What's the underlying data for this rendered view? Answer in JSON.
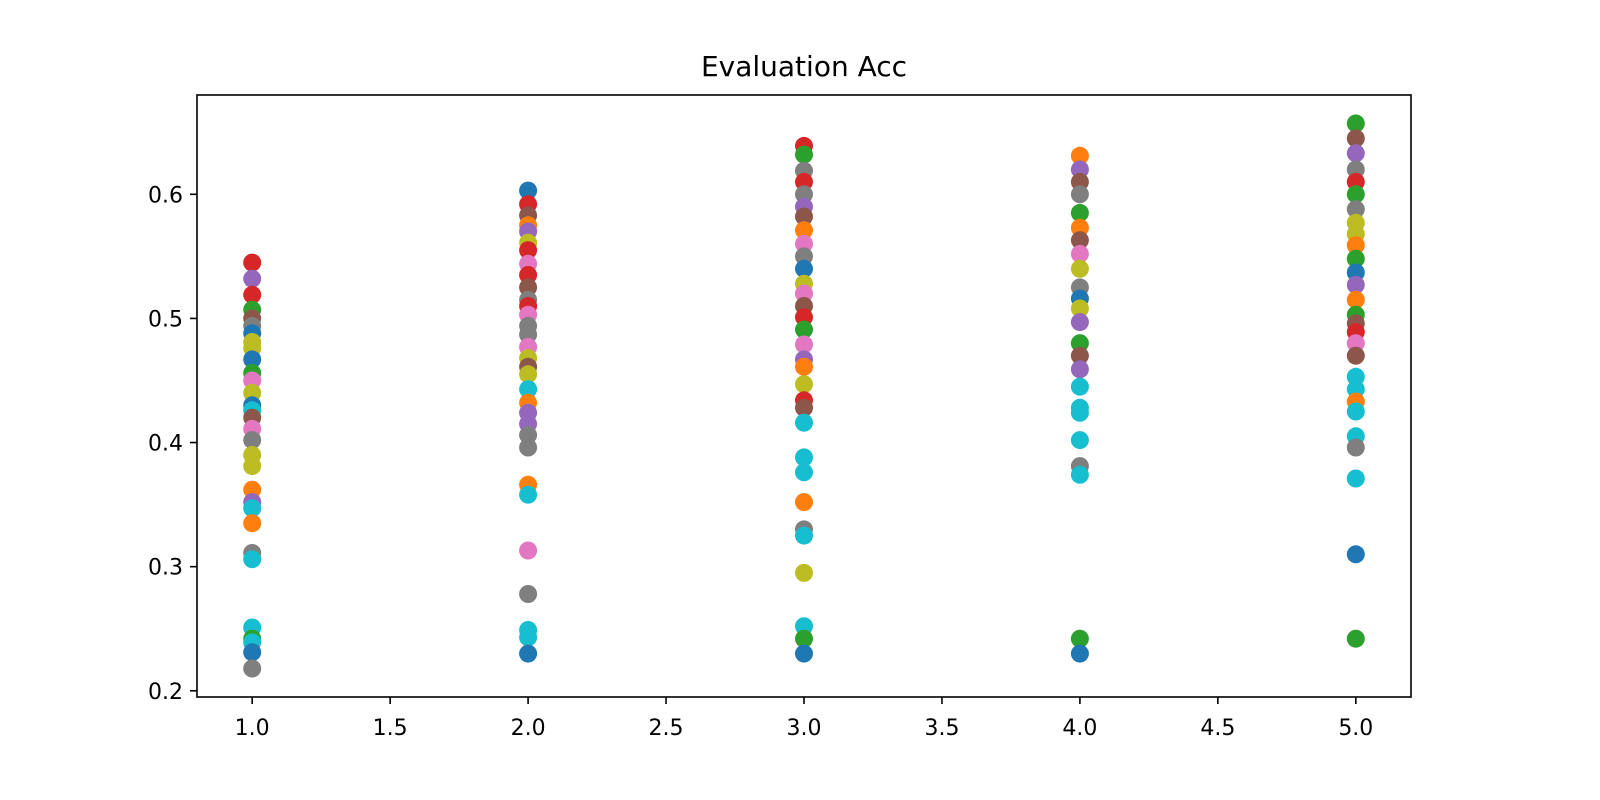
{
  "chart_data": {
    "type": "scatter",
    "title": "Evaluation Acc",
    "xlabel": "",
    "ylabel": "",
    "xlim": [
      0.8,
      5.2
    ],
    "ylim": [
      0.195,
      0.68
    ],
    "x_ticks": [
      "1.0",
      "1.5",
      "2.0",
      "2.5",
      "3.0",
      "3.5",
      "4.0",
      "4.5",
      "5.0"
    ],
    "y_ticks": [
      "0.2",
      "0.3",
      "0.4",
      "0.5",
      "0.6"
    ],
    "grid": false,
    "legend": "none",
    "palette": [
      "#1f77b4",
      "#ff7f0e",
      "#2ca02c",
      "#d62728",
      "#9467bd",
      "#8c564b",
      "#e377c2",
      "#7f7f7f",
      "#bcbd22",
      "#17becf"
    ],
    "points": [
      {
        "x": 1,
        "y": 0.545,
        "c": "#d62728"
      },
      {
        "x": 1,
        "y": 0.532,
        "c": "#9467bd"
      },
      {
        "x": 1,
        "y": 0.519,
        "c": "#d62728"
      },
      {
        "x": 1,
        "y": 0.507,
        "c": "#2ca02c"
      },
      {
        "x": 1,
        "y": 0.5,
        "c": "#8c564b"
      },
      {
        "x": 1,
        "y": 0.494,
        "c": "#7f7f7f"
      },
      {
        "x": 1,
        "y": 0.488,
        "c": "#1f77b4"
      },
      {
        "x": 1,
        "y": 0.481,
        "c": "#bcbd22"
      },
      {
        "x": 1,
        "y": 0.476,
        "c": "#bcbd22"
      },
      {
        "x": 1,
        "y": 0.467,
        "c": "#1f77b4"
      },
      {
        "x": 1,
        "y": 0.456,
        "c": "#2ca02c"
      },
      {
        "x": 1,
        "y": 0.45,
        "c": "#e377c2"
      },
      {
        "x": 1,
        "y": 0.44,
        "c": "#bcbd22"
      },
      {
        "x": 1,
        "y": 0.43,
        "c": "#1f77b4"
      },
      {
        "x": 1,
        "y": 0.426,
        "c": "#17becf"
      },
      {
        "x": 1,
        "y": 0.42,
        "c": "#8c564b"
      },
      {
        "x": 1,
        "y": 0.411,
        "c": "#e377c2"
      },
      {
        "x": 1,
        "y": 0.402,
        "c": "#7f7f7f"
      },
      {
        "x": 1,
        "y": 0.39,
        "c": "#bcbd22"
      },
      {
        "x": 1,
        "y": 0.381,
        "c": "#bcbd22"
      },
      {
        "x": 1,
        "y": 0.362,
        "c": "#ff7f0e"
      },
      {
        "x": 1,
        "y": 0.352,
        "c": "#9467bd"
      },
      {
        "x": 1,
        "y": 0.347,
        "c": "#17becf"
      },
      {
        "x": 1,
        "y": 0.335,
        "c": "#ff7f0e"
      },
      {
        "x": 1,
        "y": 0.311,
        "c": "#7f7f7f"
      },
      {
        "x": 1,
        "y": 0.306,
        "c": "#17becf"
      },
      {
        "x": 1,
        "y": 0.251,
        "c": "#17becf"
      },
      {
        "x": 1,
        "y": 0.242,
        "c": "#2ca02c"
      },
      {
        "x": 1,
        "y": 0.239,
        "c": "#17becf"
      },
      {
        "x": 1,
        "y": 0.231,
        "c": "#1f77b4"
      },
      {
        "x": 1,
        "y": 0.218,
        "c": "#7f7f7f"
      },
      {
        "x": 2,
        "y": 0.603,
        "c": "#1f77b4"
      },
      {
        "x": 2,
        "y": 0.592,
        "c": "#d62728"
      },
      {
        "x": 2,
        "y": 0.583,
        "c": "#8c564b"
      },
      {
        "x": 2,
        "y": 0.575,
        "c": "#ff7f0e"
      },
      {
        "x": 2,
        "y": 0.57,
        "c": "#9467bd"
      },
      {
        "x": 2,
        "y": 0.561,
        "c": "#bcbd22"
      },
      {
        "x": 2,
        "y": 0.555,
        "c": "#d62728"
      },
      {
        "x": 2,
        "y": 0.544,
        "c": "#e377c2"
      },
      {
        "x": 2,
        "y": 0.535,
        "c": "#d62728"
      },
      {
        "x": 2,
        "y": 0.525,
        "c": "#8c564b"
      },
      {
        "x": 2,
        "y": 0.515,
        "c": "#7f7f7f"
      },
      {
        "x": 2,
        "y": 0.51,
        "c": "#d62728"
      },
      {
        "x": 2,
        "y": 0.503,
        "c": "#e377c2"
      },
      {
        "x": 2,
        "y": 0.494,
        "c": "#7f7f7f"
      },
      {
        "x": 2,
        "y": 0.487,
        "c": "#7f7f7f"
      },
      {
        "x": 2,
        "y": 0.477,
        "c": "#e377c2"
      },
      {
        "x": 2,
        "y": 0.468,
        "c": "#bcbd22"
      },
      {
        "x": 2,
        "y": 0.461,
        "c": "#8c564b"
      },
      {
        "x": 2,
        "y": 0.455,
        "c": "#bcbd22"
      },
      {
        "x": 2,
        "y": 0.443,
        "c": "#17becf"
      },
      {
        "x": 2,
        "y": 0.432,
        "c": "#ff7f0e"
      },
      {
        "x": 2,
        "y": 0.424,
        "c": "#9467bd"
      },
      {
        "x": 2,
        "y": 0.415,
        "c": "#9467bd"
      },
      {
        "x": 2,
        "y": 0.406,
        "c": "#7f7f7f"
      },
      {
        "x": 2,
        "y": 0.396,
        "c": "#7f7f7f"
      },
      {
        "x": 2,
        "y": 0.366,
        "c": "#ff7f0e"
      },
      {
        "x": 2,
        "y": 0.358,
        "c": "#17becf"
      },
      {
        "x": 2,
        "y": 0.313,
        "c": "#e377c2"
      },
      {
        "x": 2,
        "y": 0.278,
        "c": "#7f7f7f"
      },
      {
        "x": 2,
        "y": 0.249,
        "c": "#17becf"
      },
      {
        "x": 2,
        "y": 0.243,
        "c": "#17becf"
      },
      {
        "x": 2,
        "y": 0.23,
        "c": "#1f77b4"
      },
      {
        "x": 3,
        "y": 0.639,
        "c": "#d62728"
      },
      {
        "x": 3,
        "y": 0.632,
        "c": "#2ca02c"
      },
      {
        "x": 3,
        "y": 0.619,
        "c": "#7f7f7f"
      },
      {
        "x": 3,
        "y": 0.61,
        "c": "#d62728"
      },
      {
        "x": 3,
        "y": 0.6,
        "c": "#7f7f7f"
      },
      {
        "x": 3,
        "y": 0.59,
        "c": "#9467bd"
      },
      {
        "x": 3,
        "y": 0.582,
        "c": "#8c564b"
      },
      {
        "x": 3,
        "y": 0.571,
        "c": "#ff7f0e"
      },
      {
        "x": 3,
        "y": 0.56,
        "c": "#e377c2"
      },
      {
        "x": 3,
        "y": 0.55,
        "c": "#7f7f7f"
      },
      {
        "x": 3,
        "y": 0.54,
        "c": "#1f77b4"
      },
      {
        "x": 3,
        "y": 0.528,
        "c": "#bcbd22"
      },
      {
        "x": 3,
        "y": 0.52,
        "c": "#e377c2"
      },
      {
        "x": 3,
        "y": 0.51,
        "c": "#8c564b"
      },
      {
        "x": 3,
        "y": 0.501,
        "c": "#d62728"
      },
      {
        "x": 3,
        "y": 0.491,
        "c": "#2ca02c"
      },
      {
        "x": 3,
        "y": 0.479,
        "c": "#e377c2"
      },
      {
        "x": 3,
        "y": 0.467,
        "c": "#9467bd"
      },
      {
        "x": 3,
        "y": 0.461,
        "c": "#ff7f0e"
      },
      {
        "x": 3,
        "y": 0.447,
        "c": "#bcbd22"
      },
      {
        "x": 3,
        "y": 0.434,
        "c": "#d62728"
      },
      {
        "x": 3,
        "y": 0.428,
        "c": "#8c564b"
      },
      {
        "x": 3,
        "y": 0.416,
        "c": "#17becf"
      },
      {
        "x": 3,
        "y": 0.388,
        "c": "#17becf"
      },
      {
        "x": 3,
        "y": 0.376,
        "c": "#17becf"
      },
      {
        "x": 3,
        "y": 0.352,
        "c": "#ff7f0e"
      },
      {
        "x": 3,
        "y": 0.33,
        "c": "#7f7f7f"
      },
      {
        "x": 3,
        "y": 0.325,
        "c": "#17becf"
      },
      {
        "x": 3,
        "y": 0.295,
        "c": "#bcbd22"
      },
      {
        "x": 3,
        "y": 0.252,
        "c": "#17becf"
      },
      {
        "x": 3,
        "y": 0.242,
        "c": "#2ca02c"
      },
      {
        "x": 3,
        "y": 0.23,
        "c": "#1f77b4"
      },
      {
        "x": 4,
        "y": 0.631,
        "c": "#ff7f0e"
      },
      {
        "x": 4,
        "y": 0.62,
        "c": "#9467bd"
      },
      {
        "x": 4,
        "y": 0.61,
        "c": "#8c564b"
      },
      {
        "x": 4,
        "y": 0.6,
        "c": "#7f7f7f"
      },
      {
        "x": 4,
        "y": 0.585,
        "c": "#2ca02c"
      },
      {
        "x": 4,
        "y": 0.573,
        "c": "#ff7f0e"
      },
      {
        "x": 4,
        "y": 0.563,
        "c": "#8c564b"
      },
      {
        "x": 4,
        "y": 0.552,
        "c": "#e377c2"
      },
      {
        "x": 4,
        "y": 0.54,
        "c": "#bcbd22"
      },
      {
        "x": 4,
        "y": 0.525,
        "c": "#7f7f7f"
      },
      {
        "x": 4,
        "y": 0.516,
        "c": "#1f77b4"
      },
      {
        "x": 4,
        "y": 0.508,
        "c": "#bcbd22"
      },
      {
        "x": 4,
        "y": 0.497,
        "c": "#9467bd"
      },
      {
        "x": 4,
        "y": 0.48,
        "c": "#2ca02c"
      },
      {
        "x": 4,
        "y": 0.47,
        "c": "#8c564b"
      },
      {
        "x": 4,
        "y": 0.459,
        "c": "#9467bd"
      },
      {
        "x": 4,
        "y": 0.445,
        "c": "#17becf"
      },
      {
        "x": 4,
        "y": 0.428,
        "c": "#17becf"
      },
      {
        "x": 4,
        "y": 0.424,
        "c": "#17becf"
      },
      {
        "x": 4,
        "y": 0.402,
        "c": "#17becf"
      },
      {
        "x": 4,
        "y": 0.381,
        "c": "#7f7f7f"
      },
      {
        "x": 4,
        "y": 0.374,
        "c": "#17becf"
      },
      {
        "x": 4,
        "y": 0.242,
        "c": "#2ca02c"
      },
      {
        "x": 4,
        "y": 0.23,
        "c": "#1f77b4"
      },
      {
        "x": 5,
        "y": 0.657,
        "c": "#2ca02c"
      },
      {
        "x": 5,
        "y": 0.645,
        "c": "#8c564b"
      },
      {
        "x": 5,
        "y": 0.633,
        "c": "#9467bd"
      },
      {
        "x": 5,
        "y": 0.62,
        "c": "#7f7f7f"
      },
      {
        "x": 5,
        "y": 0.61,
        "c": "#d62728"
      },
      {
        "x": 5,
        "y": 0.6,
        "c": "#2ca02c"
      },
      {
        "x": 5,
        "y": 0.588,
        "c": "#7f7f7f"
      },
      {
        "x": 5,
        "y": 0.577,
        "c": "#bcbd22"
      },
      {
        "x": 5,
        "y": 0.568,
        "c": "#bcbd22"
      },
      {
        "x": 5,
        "y": 0.559,
        "c": "#ff7f0e"
      },
      {
        "x": 5,
        "y": 0.548,
        "c": "#2ca02c"
      },
      {
        "x": 5,
        "y": 0.537,
        "c": "#1f77b4"
      },
      {
        "x": 5,
        "y": 0.527,
        "c": "#9467bd"
      },
      {
        "x": 5,
        "y": 0.515,
        "c": "#ff7f0e"
      },
      {
        "x": 5,
        "y": 0.503,
        "c": "#2ca02c"
      },
      {
        "x": 5,
        "y": 0.496,
        "c": "#8c564b"
      },
      {
        "x": 5,
        "y": 0.489,
        "c": "#d62728"
      },
      {
        "x": 5,
        "y": 0.48,
        "c": "#e377c2"
      },
      {
        "x": 5,
        "y": 0.47,
        "c": "#8c564b"
      },
      {
        "x": 5,
        "y": 0.453,
        "c": "#17becf"
      },
      {
        "x": 5,
        "y": 0.443,
        "c": "#17becf"
      },
      {
        "x": 5,
        "y": 0.433,
        "c": "#ff7f0e"
      },
      {
        "x": 5,
        "y": 0.425,
        "c": "#17becf"
      },
      {
        "x": 5,
        "y": 0.405,
        "c": "#17becf"
      },
      {
        "x": 5,
        "y": 0.396,
        "c": "#7f7f7f"
      },
      {
        "x": 5,
        "y": 0.371,
        "c": "#17becf"
      },
      {
        "x": 5,
        "y": 0.31,
        "c": "#1f77b4"
      },
      {
        "x": 5,
        "y": 0.242,
        "c": "#2ca02c"
      }
    ]
  }
}
